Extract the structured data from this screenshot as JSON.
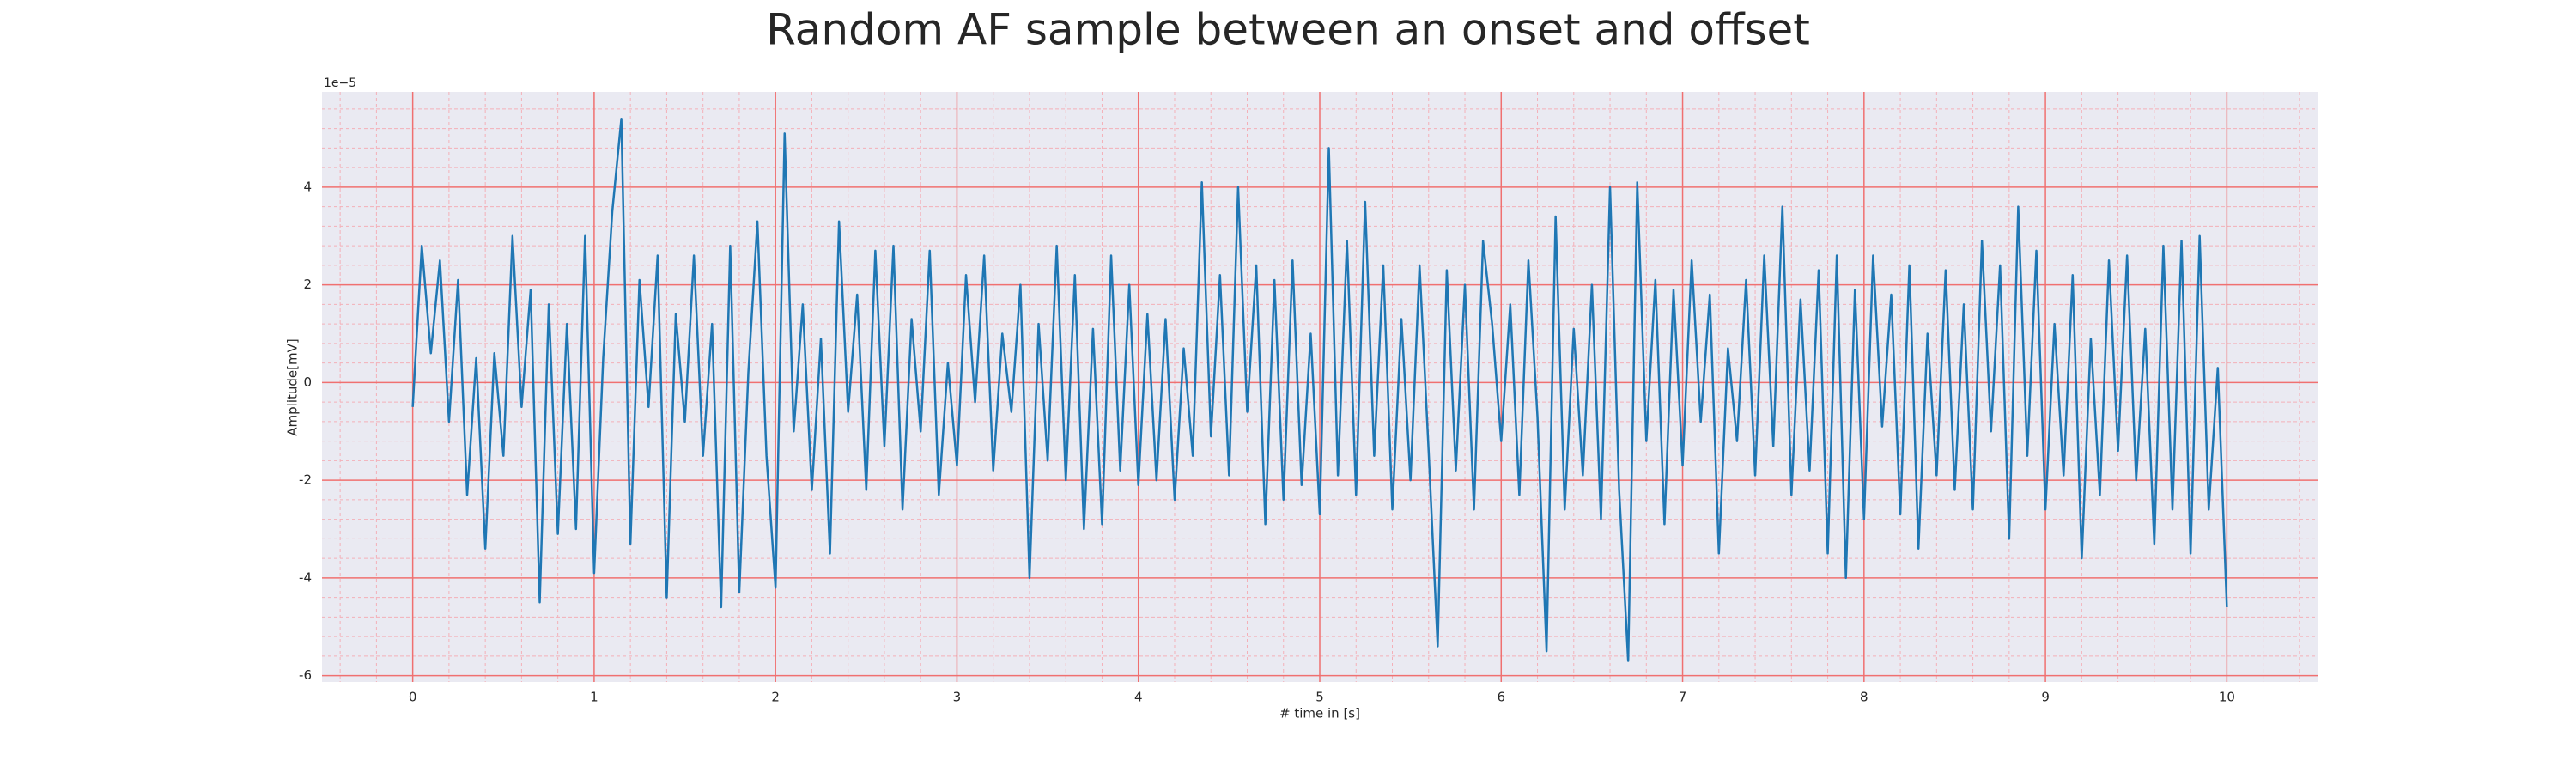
{
  "chart_data": {
    "type": "line",
    "title": "Random AF sample between an onset and offset",
    "x_label": "# time in [s]",
    "y_label": "Amplitude[mV]",
    "y_offset_label": "1e−5",
    "color": "#1f77b4",
    "grid": true,
    "grid_color": "#f07070",
    "minor_grid": true,
    "minor_grid_color": "#f4b0b8",
    "background": "#eaeaf2",
    "xlim": [
      -0.5,
      10.5
    ],
    "ylim": [
      -6.13,
      5.95
    ],
    "xticks": [
      0,
      1,
      2,
      3,
      4,
      5,
      6,
      7,
      8,
      9,
      10
    ],
    "yticks": [
      -6,
      -4,
      -2,
      0,
      2,
      4
    ],
    "xminorticks": [
      -0.4,
      -0.2,
      0.2,
      0.4,
      0.6,
      0.8,
      1.2,
      1.4,
      1.6,
      1.8,
      2.2,
      2.4,
      2.6,
      2.8,
      3.2,
      3.4,
      3.6,
      3.8,
      4.2,
      4.4,
      4.6,
      4.8,
      5.2,
      5.4,
      5.6,
      5.8,
      6.2,
      6.4,
      6.6,
      6.8,
      7.2,
      7.4,
      7.6,
      7.8,
      8.2,
      8.4,
      8.6,
      8.8,
      9.2,
      9.4,
      9.6,
      9.8,
      10.2,
      10.4
    ],
    "yminorticks": [
      -5.6,
      -5.2,
      -4.8,
      -4.4,
      -3.6,
      -3.2,
      -2.8,
      -2.4,
      -1.6,
      -1.2,
      -0.8,
      -0.4,
      0.4,
      0.8,
      1.2,
      1.6,
      2.4,
      2.8,
      3.2,
      3.6,
      4.4,
      4.8,
      5.2,
      5.6
    ],
    "x": [
      0,
      0.05,
      0.1,
      0.15,
      0.2,
      0.25,
      0.3,
      0.35,
      0.4,
      0.45,
      0.5,
      0.55,
      0.6,
      0.65,
      0.7,
      0.75,
      0.8,
      0.85,
      0.9,
      0.95,
      1,
      1.05,
      1.1,
      1.15,
      1.2,
      1.25,
      1.3,
      1.35,
      1.4,
      1.45,
      1.5,
      1.55,
      1.6,
      1.65,
      1.7,
      1.75,
      1.8,
      1.85,
      1.9,
      1.95,
      2,
      2.05,
      2.1,
      2.15,
      2.2,
      2.25,
      2.3,
      2.35,
      2.4,
      2.45,
      2.5,
      2.55,
      2.6,
      2.65,
      2.7,
      2.75,
      2.8,
      2.85,
      2.9,
      2.95,
      3,
      3.05,
      3.1,
      3.15,
      3.2,
      3.25,
      3.3,
      3.35,
      3.4,
      3.45,
      3.5,
      3.55,
      3.6,
      3.65,
      3.7,
      3.75,
      3.8,
      3.85,
      3.9,
      3.95,
      4,
      4.05,
      4.1,
      4.15,
      4.2,
      4.25,
      4.3,
      4.35,
      4.4,
      4.45,
      4.5,
      4.55,
      4.6,
      4.65,
      4.7,
      4.75,
      4.8,
      4.85,
      4.9,
      4.95,
      5,
      5.05,
      5.1,
      5.15,
      5.2,
      5.25,
      5.3,
      5.35,
      5.4,
      5.45,
      5.5,
      5.55,
      5.6,
      5.65,
      5.7,
      5.75,
      5.8,
      5.85,
      5.9,
      5.95,
      6,
      6.05,
      6.1,
      6.15,
      6.2,
      6.25,
      6.3,
      6.35,
      6.4,
      6.45,
      6.5,
      6.55,
      6.6,
      6.65,
      6.7,
      6.75,
      6.8,
      6.85,
      6.9,
      6.95,
      7,
      7.05,
      7.1,
      7.15,
      7.2,
      7.25,
      7.3,
      7.35,
      7.4,
      7.45,
      7.5,
      7.55,
      7.6,
      7.65,
      7.7,
      7.75,
      7.8,
      7.85,
      7.9,
      7.95,
      8,
      8.05,
      8.1,
      8.15,
      8.2,
      8.25,
      8.3,
      8.35,
      8.4,
      8.45,
      8.5,
      8.55,
      8.6,
      8.65,
      8.7,
      8.75,
      8.8,
      8.85,
      8.9,
      8.95,
      9,
      9.05,
      9.1,
      9.15,
      9.2,
      9.25,
      9.3,
      9.35,
      9.4,
      9.45,
      9.5,
      9.55,
      9.6,
      9.65,
      9.7,
      9.75,
      9.8,
      9.85,
      9.9,
      9.95,
      10
    ],
    "values": [
      -0.5,
      2.8,
      0.6,
      2.5,
      -0.8,
      2.1,
      -2.3,
      0.5,
      -3.4,
      0.6,
      -1.5,
      3.0,
      -0.5,
      1.9,
      -4.5,
      1.6,
      -3.1,
      1.2,
      -3.0,
      3.0,
      -3.9,
      0.5,
      3.5,
      5.4,
      -3.3,
      2.1,
      -0.5,
      2.6,
      -4.4,
      1.4,
      -0.8,
      2.6,
      -1.5,
      1.2,
      -4.6,
      2.8,
      -4.3,
      0.2,
      3.3,
      -1.5,
      -4.2,
      5.1,
      -1.0,
      1.6,
      -2.2,
      0.9,
      -3.5,
      3.3,
      -0.6,
      1.8,
      -2.2,
      2.7,
      -1.3,
      2.8,
      -2.6,
      1.3,
      -1.0,
      2.7,
      -2.3,
      0.4,
      -1.7,
      2.2,
      -0.4,
      2.6,
      -1.8,
      1.0,
      -0.6,
      2.0,
      -4.0,
      1.2,
      -1.6,
      2.8,
      -2.0,
      2.2,
      -3.0,
      1.1,
      -2.9,
      2.6,
      -1.8,
      2.0,
      -2.1,
      1.4,
      -2.0,
      1.3,
      -2.4,
      0.7,
      -1.5,
      4.1,
      -1.1,
      2.2,
      -1.9,
      4.0,
      -0.6,
      2.4,
      -2.9,
      2.1,
      -2.4,
      2.5,
      -2.1,
      1.0,
      -2.7,
      4.8,
      -1.9,
      2.9,
      -2.3,
      3.7,
      -1.5,
      2.4,
      -2.6,
      1.3,
      -2.0,
      2.4,
      -1.4,
      -5.4,
      2.3,
      -1.8,
      2.0,
      -2.6,
      2.9,
      1.2,
      -1.2,
      1.6,
      -2.3,
      2.5,
      -0.7,
      -5.5,
      3.4,
      -2.6,
      1.1,
      -1.9,
      2.0,
      -2.8,
      4.0,
      -2.2,
      -5.7,
      4.1,
      -1.2,
      2.1,
      -2.9,
      1.9,
      -1.7,
      2.5,
      -0.8,
      1.8,
      -3.5,
      0.7,
      -1.2,
      2.1,
      -1.9,
      2.6,
      -1.3,
      3.6,
      -2.3,
      1.7,
      -1.8,
      2.3,
      -3.5,
      2.6,
      -4.0,
      1.9,
      -2.8,
      2.6,
      -0.9,
      1.8,
      -2.7,
      2.4,
      -3.4,
      1.0,
      -1.9,
      2.3,
      -2.2,
      1.6,
      -2.6,
      2.9,
      -1.0,
      2.4,
      -3.2,
      3.6,
      -1.5,
      2.7,
      -2.6,
      1.2,
      -1.9,
      2.2,
      -3.6,
      0.9,
      -2.3,
      2.5,
      -1.4,
      2.6,
      -2.0,
      1.1,
      -3.3,
      2.8,
      -2.6,
      2.9,
      -3.5,
      3.0,
      -2.6,
      0.3,
      -4.6
    ]
  }
}
